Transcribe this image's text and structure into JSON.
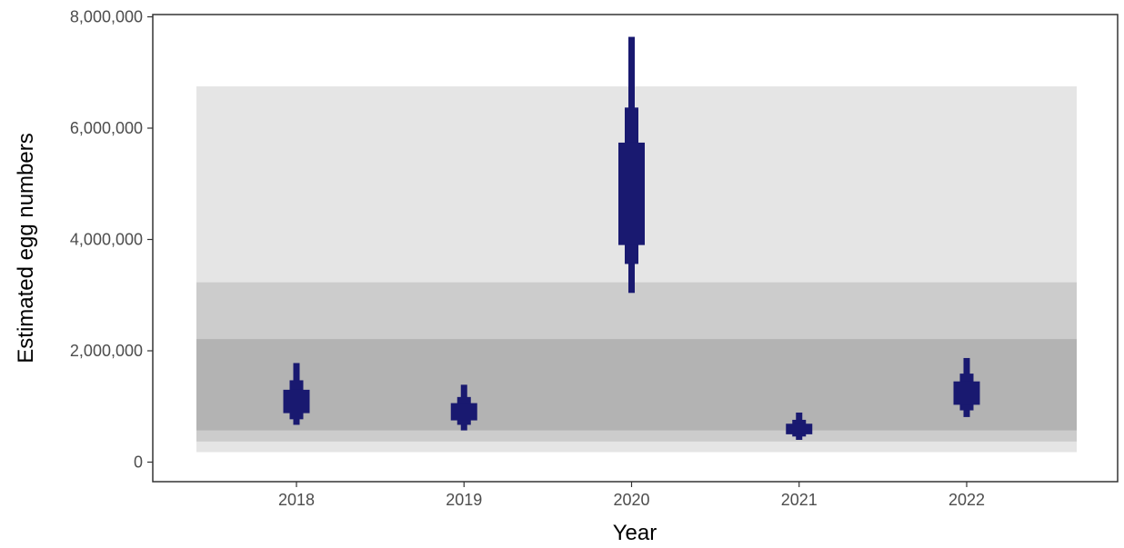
{
  "chart_data": {
    "type": "interval",
    "title": "",
    "xlabel": "Year",
    "ylabel": "Estimated egg numbers",
    "x_categories": [
      "2018",
      "2019",
      "2020",
      "2021",
      "2022"
    ],
    "ylim": [
      -350000,
      8000000
    ],
    "y_ticks": [
      0,
      2000000,
      4000000,
      6000000,
      8000000
    ],
    "y_tick_labels": [
      "0",
      "2,000,000",
      "4,000,000",
      "6,000,000",
      "8,000,000"
    ],
    "grid": false,
    "legend": "none",
    "colors": {
      "interval": "#191970",
      "band_outer": "#e5e5e5",
      "band_middle": "#cccccc",
      "band_inner": "#b3b3b3"
    },
    "reference_bands": [
      {
        "level": "outer",
        "ymin": 180000,
        "ymax": 6750000
      },
      {
        "level": "middle",
        "ymin": 370000,
        "ymax": 3230000
      },
      {
        "level": "inner",
        "ymin": 570000,
        "ymax": 2210000
      }
    ],
    "series": [
      {
        "intervals": [
          {
            "x": "2018",
            "widths": [
              {
                "lower": 670000,
                "upper": 1780000
              },
              {
                "lower": 770000,
                "upper": 1470000
              },
              {
                "lower": 880000,
                "upper": 1300000
              }
            ]
          },
          {
            "x": "2019",
            "widths": [
              {
                "lower": 570000,
                "upper": 1390000
              },
              {
                "lower": 670000,
                "upper": 1170000
              },
              {
                "lower": 750000,
                "upper": 1060000
              }
            ]
          },
          {
            "x": "2020",
            "widths": [
              {
                "lower": 3040000,
                "upper": 7640000
              },
              {
                "lower": 3560000,
                "upper": 6370000
              },
              {
                "lower": 3900000,
                "upper": 5740000
              }
            ]
          },
          {
            "x": "2021",
            "widths": [
              {
                "lower": 400000,
                "upper": 890000
              },
              {
                "lower": 460000,
                "upper": 760000
              },
              {
                "lower": 500000,
                "upper": 690000
              }
            ]
          },
          {
            "x": "2022",
            "widths": [
              {
                "lower": 810000,
                "upper": 1870000
              },
              {
                "lower": 930000,
                "upper": 1590000
              },
              {
                "lower": 1030000,
                "upper": 1450000
              }
            ]
          }
        ]
      }
    ]
  }
}
